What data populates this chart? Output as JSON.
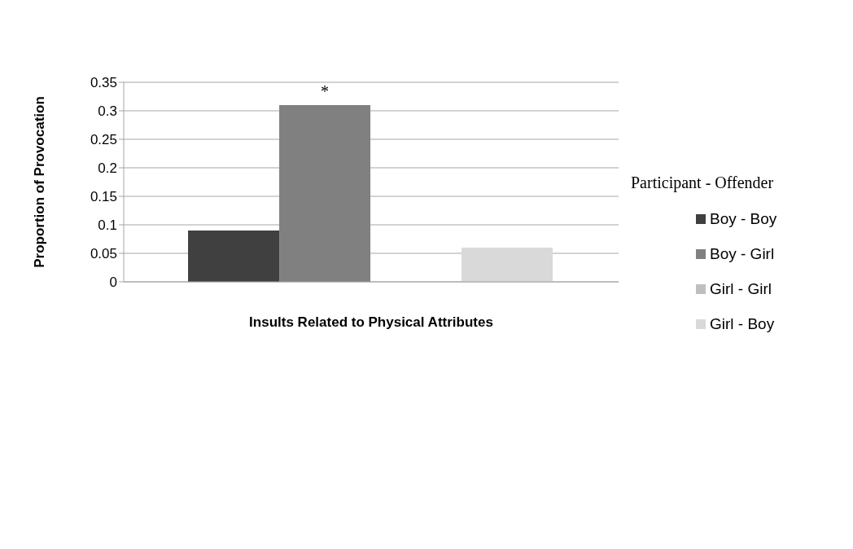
{
  "chart_data": {
    "type": "bar",
    "xlabel": "Insults Related to Physical Attributes",
    "ylabel": "Proportion of  Provocation",
    "legend_title": "Participant - Offender",
    "categories": [
      null
    ],
    "series": [
      {
        "name": "Boy - Boy",
        "color": "#404040",
        "values": [
          0.09
        ]
      },
      {
        "name": "Boy - Girl",
        "color": "#808080",
        "values": [
          0.31
        ]
      },
      {
        "name": "Girl - Girl",
        "color": "#bfbfbf",
        "values": [
          0
        ]
      },
      {
        "name": "Girl - Boy",
        "color": "#d9d9d9",
        "values": [
          0.06
        ]
      }
    ],
    "ylim": [
      0,
      0.35
    ],
    "yticks": [
      0,
      0.05,
      0.1,
      0.15,
      0.2,
      0.25,
      0.3,
      0.35
    ],
    "grid": "y",
    "legend": "right",
    "annotations": [
      {
        "text": "*",
        "y": 0.31
      }
    ]
  }
}
